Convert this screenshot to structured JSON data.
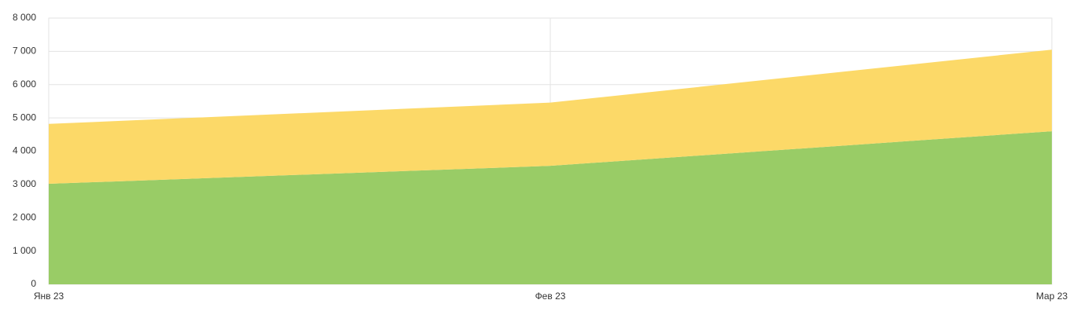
{
  "chart_data": {
    "type": "stacked-area",
    "categories": [
      "Янв 23",
      "Фев 23",
      "Мар 23"
    ],
    "series": [
      {
        "color": "#99cc66",
        "values": [
          3020,
          3560,
          4600
        ]
      },
      {
        "color": "#fcd968",
        "values": [
          1800,
          1900,
          2450
        ]
      }
    ],
    "ylim": [
      0,
      8000
    ],
    "yticks": [
      0,
      {
        "value": 1000,
        "label": "1 000"
      },
      {
        "value": 2000,
        "label": "2 000"
      },
      {
        "value": 3000,
        "label": "3 000"
      },
      {
        "value": 4000,
        "label": "4 000"
      },
      {
        "value": 5000,
        "label": "5 000"
      },
      {
        "value": 6000,
        "label": "6 000"
      },
      {
        "value": 7000,
        "label": "7 000"
      },
      {
        "value": 8000,
        "label": "8 000"
      }
    ],
    "grid": true
  }
}
